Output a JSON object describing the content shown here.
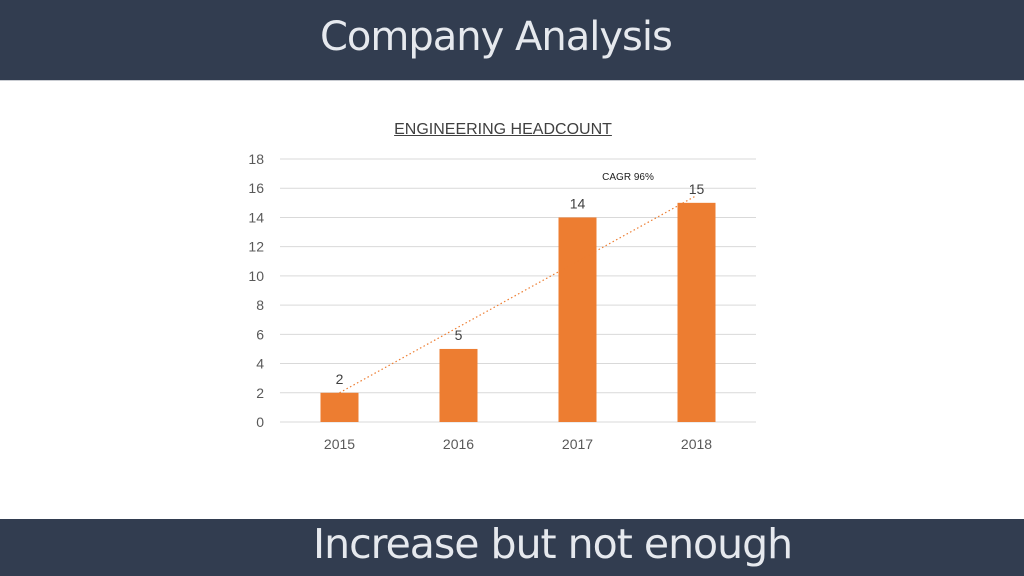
{
  "slide": {
    "title": "Company Analysis",
    "footer": "Increase but not enough"
  },
  "colors": {
    "bar": "#ED7D31",
    "header_bg": "#323D50",
    "trendline": "#ED7D31",
    "grid": "#D9D9D9"
  },
  "chart_data": {
    "type": "bar",
    "title": "ENGINEERING HEADCOUNT",
    "categories": [
      "2015",
      "2016",
      "2017",
      "2018"
    ],
    "values": [
      2,
      5,
      14,
      15
    ],
    "ylim": [
      0,
      18
    ],
    "yticks": [
      0,
      2,
      4,
      6,
      8,
      10,
      12,
      14,
      16,
      18
    ],
    "grid": true,
    "trendline": {
      "style": "dotted",
      "from": {
        "x": "2015",
        "y": 2
      },
      "to": {
        "x": "2018",
        "y": 15.5
      },
      "label": "CAGR 96%"
    }
  }
}
